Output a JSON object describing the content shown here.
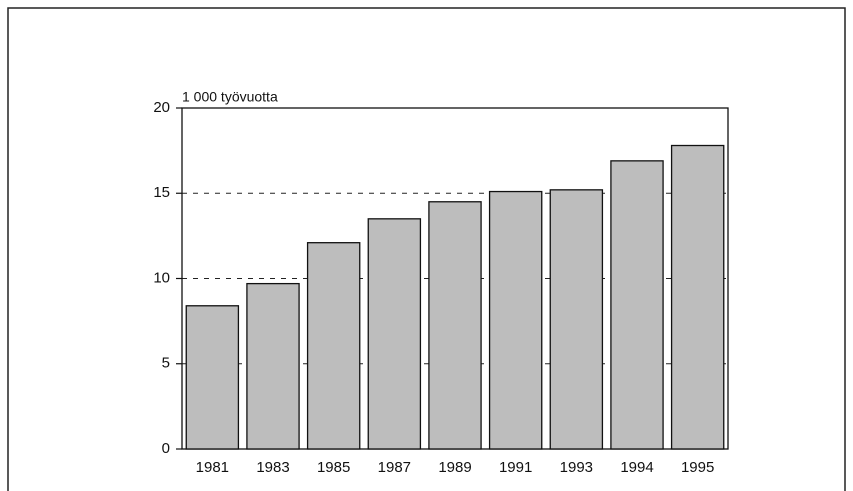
{
  "chart_data": {
    "type": "bar",
    "y_axis_label": "1 000 työvuotta",
    "categories": [
      "1981",
      "1983",
      "1985",
      "1987",
      "1989",
      "1991",
      "1993",
      "1994",
      "1995"
    ],
    "values": [
      8.4,
      9.7,
      12.1,
      13.5,
      14.5,
      15.1,
      15.2,
      16.9,
      17.8
    ],
    "color": "#bdbdbd",
    "ylim": [
      0,
      20
    ],
    "yticks": [
      0,
      5,
      10,
      15,
      20
    ],
    "grid": true
  }
}
